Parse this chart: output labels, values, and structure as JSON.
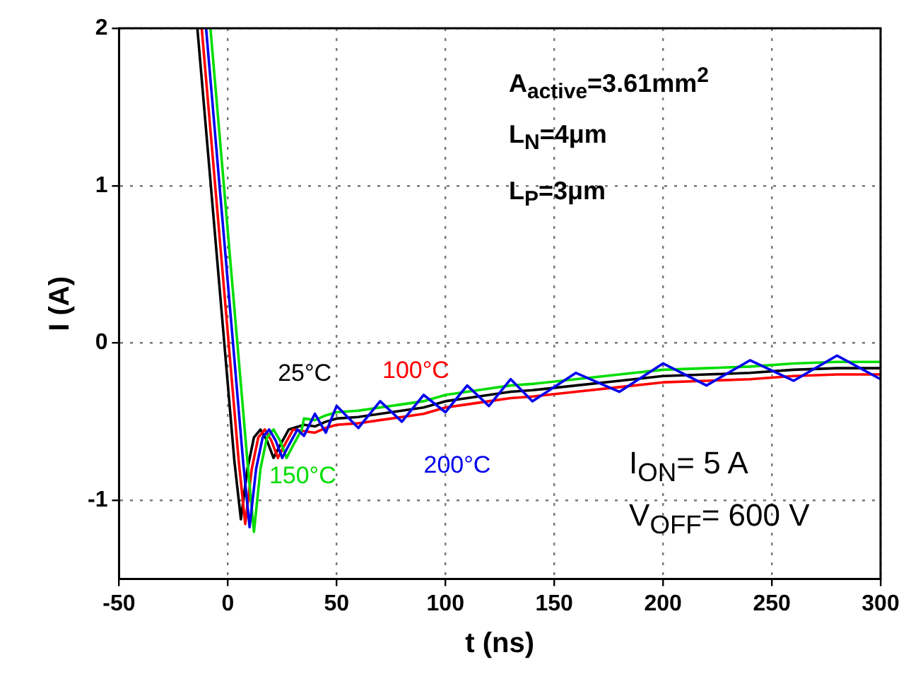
{
  "chart_data": {
    "type": "line",
    "xlabel": "t (ns)",
    "ylabel": "I (A)",
    "xlim": [
      -50,
      300
    ],
    "ylim": [
      -1.5,
      2
    ],
    "xticks": [
      -50,
      0,
      50,
      100,
      150,
      200,
      250,
      300
    ],
    "yticks": [
      -1,
      0,
      1,
      2
    ],
    "grid": true,
    "legend": false,
    "marker": "none",
    "line_style": "solid",
    "annotations": [
      "A$_{active}$=3.61mm$^{2}$",
      "L$_{N}$=4μm",
      "L$_{P}$=3μm",
      "I$_{ON}$= 5 A",
      "V$_{OFF}$= 600 V"
    ],
    "series": [
      {
        "name": "25°C",
        "color": "#000000",
        "x": [
          -14,
          -2,
          3,
          6,
          9,
          12,
          15,
          18,
          21,
          24,
          28,
          35,
          40,
          45,
          50,
          60,
          70,
          80,
          90,
          100,
          110,
          120,
          130,
          140,
          160,
          180,
          200,
          220,
          240,
          260,
          280,
          300
        ],
        "values": [
          2.0,
          0.06,
          -0.75,
          -1.12,
          -0.8,
          -0.6,
          -0.55,
          -0.62,
          -0.73,
          -0.65,
          -0.55,
          -0.52,
          -0.53,
          -0.5,
          -0.48,
          -0.47,
          -0.45,
          -0.43,
          -0.41,
          -0.37,
          -0.35,
          -0.33,
          -0.31,
          -0.3,
          -0.27,
          -0.24,
          -0.21,
          -0.2,
          -0.19,
          -0.17,
          -0.16,
          -0.16
        ]
      },
      {
        "name": "100°C",
        "color": "#ff0000",
        "x": [
          -12,
          0,
          5,
          8,
          11,
          14,
          17,
          20,
          23,
          26,
          30,
          35,
          40,
          45,
          50,
          60,
          70,
          80,
          90,
          100,
          110,
          120,
          130,
          140,
          160,
          180,
          200,
          220,
          240,
          260,
          280,
          300
        ],
        "values": [
          2.0,
          0.06,
          -0.75,
          -1.15,
          -0.8,
          -0.6,
          -0.55,
          -0.62,
          -0.73,
          -0.65,
          -0.55,
          -0.56,
          -0.57,
          -0.54,
          -0.52,
          -0.51,
          -0.49,
          -0.47,
          -0.45,
          -0.41,
          -0.39,
          -0.37,
          -0.35,
          -0.34,
          -0.31,
          -0.28,
          -0.25,
          -0.24,
          -0.23,
          -0.21,
          -0.2,
          -0.2
        ]
      },
      {
        "name": "150°C",
        "color": "#00dd00",
        "x": [
          -8,
          4,
          9,
          12,
          15,
          18,
          21,
          24,
          27,
          30,
          34,
          35,
          40,
          45,
          50,
          60,
          70,
          80,
          90,
          100,
          110,
          120,
          130,
          140,
          160,
          180,
          200,
          220,
          240,
          260,
          280,
          300
        ],
        "values": [
          2.0,
          0.06,
          -0.75,
          -1.2,
          -0.8,
          -0.6,
          -0.55,
          -0.62,
          -0.73,
          -0.65,
          -0.55,
          -0.48,
          -0.49,
          -0.46,
          -0.44,
          -0.43,
          -0.41,
          -0.39,
          -0.37,
          -0.33,
          -0.31,
          -0.29,
          -0.27,
          -0.26,
          -0.23,
          -0.2,
          -0.17,
          -0.16,
          -0.15,
          -0.13,
          -0.12,
          -0.12
        ]
      },
      {
        "name": "200°C",
        "color": "#0000ee",
        "x": [
          -10,
          2,
          7,
          10,
          13,
          16,
          19,
          22,
          25,
          28,
          32,
          35,
          40,
          45,
          50,
          60,
          70,
          80,
          90,
          100,
          110,
          120,
          130,
          140,
          160,
          180,
          200,
          220,
          240,
          260,
          280,
          300
        ],
        "values": [
          2.0,
          0.06,
          -0.75,
          -1.17,
          -0.8,
          -0.6,
          -0.55,
          -0.62,
          -0.73,
          -0.65,
          -0.55,
          -0.59,
          -0.45,
          -0.57,
          -0.4,
          -0.54,
          -0.37,
          -0.5,
          -0.33,
          -0.44,
          -0.27,
          -0.4,
          -0.23,
          -0.37,
          -0.19,
          -0.31,
          -0.13,
          -0.27,
          -0.11,
          -0.24,
          -0.08,
          -0.23
        ]
      }
    ]
  }
}
